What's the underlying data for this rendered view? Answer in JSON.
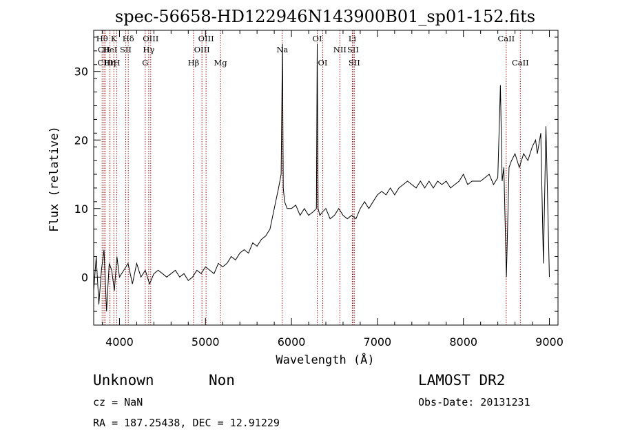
{
  "chart_data": {
    "type": "line",
    "title": "spec-56658-HD122946N143900B01_sp01-152.fits",
    "xlabel": "Wavelength (Å)",
    "ylabel": "Flux (relative)",
    "xlim": [
      3700,
      9100
    ],
    "ylim": [
      -7,
      36
    ],
    "xticks": [
      4000,
      5000,
      6000,
      7000,
      8000,
      9000
    ],
    "yticks": [
      0,
      10,
      20,
      30
    ],
    "grid": false,
    "series": [
      {
        "x": [
          3700,
          3730,
          3760,
          3790,
          3820,
          3850,
          3880,
          3910,
          3940,
          3970,
          4000,
          4050,
          4100,
          4150,
          4200,
          4250,
          4300,
          4350,
          4400,
          4450,
          4500,
          4550,
          4600,
          4650,
          4700,
          4750,
          4800,
          4850,
          4900,
          4950,
          5000,
          5050,
          5100,
          5150,
          5200,
          5250,
          5300,
          5350,
          5400,
          5450,
          5500,
          5550,
          5600,
          5650,
          5700,
          5750,
          5800,
          5850,
          5880,
          5895,
          5905,
          5920,
          5950,
          6000,
          6050,
          6100,
          6150,
          6200,
          6250,
          6290,
          6300,
          6310,
          6330,
          6360,
          6400,
          6450,
          6500,
          6550,
          6600,
          6650,
          6700,
          6750,
          6800,
          6850,
          6900,
          6950,
          7000,
          7050,
          7100,
          7150,
          7200,
          7250,
          7300,
          7350,
          7400,
          7450,
          7500,
          7550,
          7600,
          7650,
          7700,
          7750,
          7800,
          7850,
          7900,
          7950,
          8000,
          8050,
          8100,
          8150,
          8200,
          8250,
          8300,
          8350,
          8400,
          8430,
          8450,
          8470,
          8500,
          8530,
          8560,
          8600,
          8650,
          8700,
          8750,
          8800,
          8840,
          8860,
          8900,
          8930,
          8960,
          9000
        ],
        "y": [
          -2,
          3,
          -4,
          1,
          4,
          -5,
          2,
          1,
          -2,
          3,
          0,
          1,
          2,
          -1,
          2,
          0,
          1,
          -1,
          0.5,
          1,
          0.5,
          0,
          0.5,
          1,
          0,
          0.5,
          -0.5,
          0,
          1,
          0.5,
          1.5,
          1,
          0.5,
          2,
          1.5,
          2,
          3,
          2.5,
          3.5,
          4,
          3.5,
          5,
          4.5,
          5.5,
          6,
          7,
          10,
          13,
          15,
          34,
          13,
          11,
          10,
          10,
          10.5,
          9,
          10,
          9,
          9.5,
          10,
          34,
          10,
          9,
          9.5,
          10,
          8.5,
          9,
          10,
          9,
          8.5,
          9,
          8.5,
          10,
          11,
          10,
          11,
          12,
          12.5,
          12,
          13,
          12,
          13,
          13.5,
          14,
          13.5,
          13,
          14,
          13,
          14,
          13,
          14,
          13.5,
          14,
          13,
          13.5,
          14,
          15,
          13.5,
          14,
          14,
          14,
          14.5,
          15,
          13.5,
          14.5,
          28,
          14,
          16,
          0,
          16,
          17,
          18,
          16,
          18,
          17,
          19,
          20,
          18,
          21,
          2,
          22,
          0
        ]
      }
    ],
    "lines": [
      {
        "x": 3798,
        "label": "Hθ",
        "row": 1
      },
      {
        "x": 3820,
        "label": "CII",
        "row": 2
      },
      {
        "x": 3834,
        "label": "CIII",
        "row": 3
      },
      {
        "x": 3889,
        "label": "Hη",
        "row": 3
      },
      {
        "x": 3889,
        "label": "HeI",
        "row": 2
      },
      {
        "x": 3934,
        "label": "K",
        "row": 1
      },
      {
        "x": 3969,
        "label": "H",
        "row": 3
      },
      {
        "x": 4072,
        "label": "SII",
        "row": 2
      },
      {
        "x": 4102,
        "label": "Hδ",
        "row": 1
      },
      {
        "x": 4300,
        "label": "G",
        "row": 3
      },
      {
        "x": 4340,
        "label": "Hγ",
        "row": 2
      },
      {
        "x": 4363,
        "label": "OIII",
        "row": 1
      },
      {
        "x": 4861,
        "label": "Hβ",
        "row": 3
      },
      {
        "x": 4959,
        "label": "OIII",
        "row": 2
      },
      {
        "x": 5007,
        "label": "OIII",
        "row": 1
      },
      {
        "x": 5175,
        "label": "Mg",
        "row": 3
      },
      {
        "x": 5893,
        "label": "Na",
        "row": 2
      },
      {
        "x": 6300,
        "label": "OI",
        "row": 1
      },
      {
        "x": 6364,
        "label": "OI",
        "row": 3
      },
      {
        "x": 6563,
        "label": "NII",
        "row": 2
      },
      {
        "x": 6708,
        "label": "Li",
        "row": 1
      },
      {
        "x": 6716,
        "label": "SII",
        "row": 2
      },
      {
        "x": 6731,
        "label": "SII",
        "row": 3
      },
      {
        "x": 8498,
        "label": "CaII",
        "row": 1
      },
      {
        "x": 8662,
        "label": "CaII",
        "row": 3
      }
    ]
  },
  "info": {
    "class": "Unknown",
    "subclass": "Non",
    "survey": "LAMOST DR2",
    "cz": "cz = NaN",
    "obs_date": "Obs-Date: 20131231",
    "coords": "RA = 187.25438, DEC =  12.91229"
  },
  "colors": {
    "spectrum": "#000000",
    "line_markers": "#a01010"
  }
}
